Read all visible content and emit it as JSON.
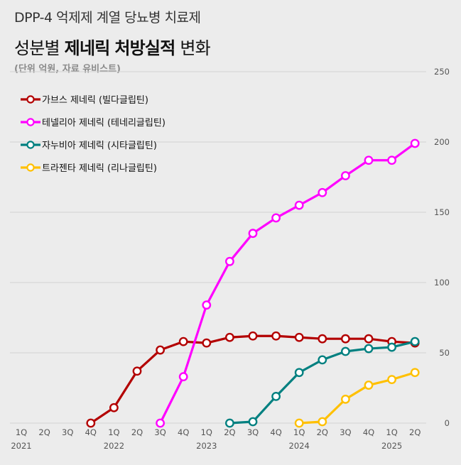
{
  "header": {
    "supertitle": "DPP-4 억제제 계열 당뇨병 치료제",
    "title_part1": "성분별 ",
    "title_bold1": "제네릭",
    "title_part2": " ",
    "title_bold2": "처방실적",
    "title_part3": " 변화",
    "subtitle": "(단위 억원, 자료 유비스트)"
  },
  "chart_data": {
    "type": "line",
    "title": "성분별 제네릭 처방실적 변화",
    "ylim": [
      0,
      250
    ],
    "yticks": [
      0,
      50,
      100,
      150,
      200,
      250
    ],
    "grid": true,
    "legend_position": "top-left",
    "categories": [
      "1Q",
      "2Q",
      "3Q",
      "4Q",
      "1Q",
      "2Q",
      "3Q",
      "4Q",
      "1Q",
      "2Q",
      "3Q",
      "4Q",
      "1Q",
      "2Q",
      "3Q",
      "4Q",
      "1Q",
      "2Q"
    ],
    "year_labels": [
      {
        "index": 0,
        "label": "2021"
      },
      {
        "index": 4,
        "label": "2022"
      },
      {
        "index": 8,
        "label": "2023"
      },
      {
        "index": 12,
        "label": "2024"
      },
      {
        "index": 16,
        "label": "2025"
      }
    ],
    "series": [
      {
        "name": "가브스 제네릭 (빌다글립틴)",
        "color": "#b30000",
        "values": [
          null,
          null,
          null,
          0,
          11,
          37,
          52,
          58,
          57,
          61,
          62,
          62,
          61,
          60,
          60,
          60,
          58,
          57
        ]
      },
      {
        "name": "테넬리아 제네릭 (테네리글립틴)",
        "color": "#ff00ff",
        "values": [
          null,
          null,
          null,
          null,
          null,
          null,
          0,
          33,
          84,
          115,
          135,
          146,
          155,
          164,
          176,
          187,
          187,
          199
        ]
      },
      {
        "name": "자누비아 제네릭 (시타글립틴)",
        "color": "#008080",
        "values": [
          null,
          null,
          null,
          null,
          null,
          null,
          null,
          null,
          null,
          0,
          1,
          19,
          36,
          45,
          51,
          53,
          54,
          58
        ]
      },
      {
        "name": "트라젠타 제네릭 (리나글립틴)",
        "color": "#ffc000",
        "values": [
          null,
          null,
          null,
          null,
          null,
          null,
          null,
          null,
          null,
          null,
          null,
          null,
          0,
          1,
          17,
          27,
          31,
          36
        ]
      }
    ]
  }
}
